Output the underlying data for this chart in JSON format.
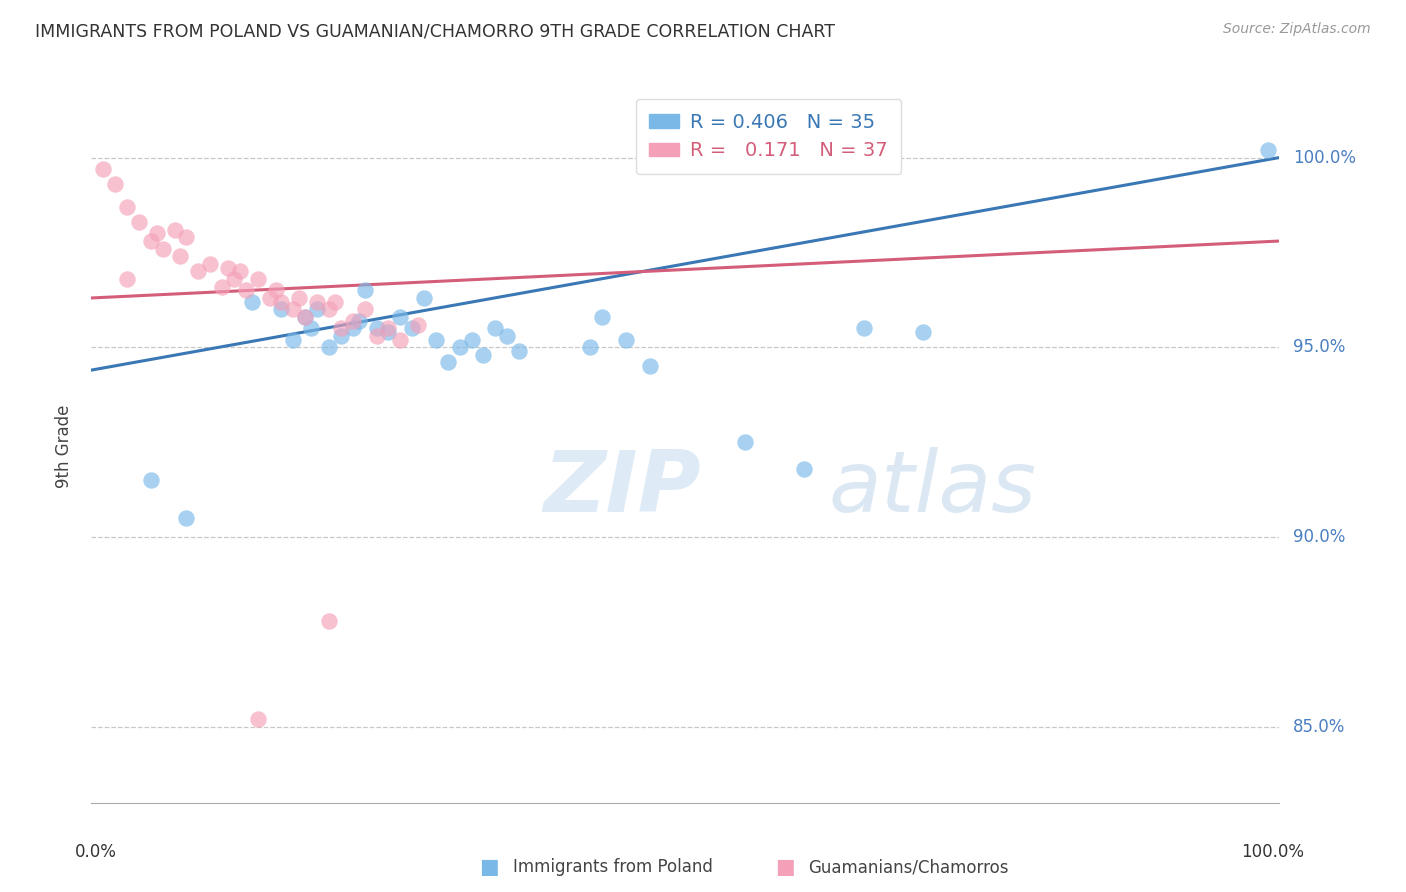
{
  "title": "IMMIGRANTS FROM POLAND VS GUAMANIAN/CHAMORRO 9TH GRADE CORRELATION CHART",
  "source": "Source: ZipAtlas.com",
  "ylabel": "9th Grade",
  "xlim": [
    0,
    100
  ],
  "ylim": [
    83.0,
    101.8
  ],
  "yticks": [
    85.0,
    90.0,
    95.0,
    100.0
  ],
  "ytick_labels": [
    "85.0%",
    "90.0%",
    "95.0%",
    "100.0%"
  ],
  "blue_color": "#7ab8e8",
  "pink_color": "#f4a0b8",
  "blue_line_color": "#3a78b5",
  "pink_line_color": "#d45e7a",
  "legend_blue_R": "0.406",
  "legend_blue_N": "35",
  "legend_pink_R": "0.171",
  "legend_pink_N": "37",
  "blue_scatter_x": [
    5.0,
    8.0,
    13.5,
    16.0,
    17.0,
    18.0,
    18.5,
    19.0,
    20.0,
    21.0,
    22.0,
    22.5,
    23.0,
    24.0,
    25.0,
    26.0,
    27.0,
    28.0,
    29.0,
    30.0,
    31.0,
    32.0,
    33.0,
    34.0,
    35.0,
    36.0,
    42.0,
    43.0,
    45.0,
    47.0,
    55.0,
    60.0,
    65.0,
    70.0,
    99.0
  ],
  "blue_scatter_y": [
    91.5,
    90.5,
    96.2,
    96.0,
    95.2,
    95.8,
    95.5,
    96.0,
    95.0,
    95.3,
    95.5,
    95.7,
    96.5,
    95.5,
    95.4,
    95.8,
    95.5,
    96.3,
    95.2,
    94.6,
    95.0,
    95.2,
    94.8,
    95.5,
    95.3,
    94.9,
    95.0,
    95.8,
    95.2,
    94.5,
    92.5,
    91.8,
    95.5,
    95.4,
    100.2
  ],
  "pink_scatter_x": [
    1.0,
    2.0,
    3.0,
    4.0,
    5.0,
    5.5,
    6.0,
    7.0,
    7.5,
    8.0,
    9.0,
    10.0,
    11.0,
    11.5,
    12.0,
    12.5,
    13.0,
    14.0,
    15.0,
    15.5,
    16.0,
    17.0,
    17.5,
    18.0,
    19.0,
    20.0,
    20.5,
    21.0,
    22.0,
    23.0,
    24.0,
    25.0,
    26.0,
    27.5,
    20.0,
    14.0,
    3.0
  ],
  "pink_scatter_y": [
    99.7,
    99.3,
    98.7,
    98.3,
    97.8,
    98.0,
    97.6,
    98.1,
    97.4,
    97.9,
    97.0,
    97.2,
    96.6,
    97.1,
    96.8,
    97.0,
    96.5,
    96.8,
    96.3,
    96.5,
    96.2,
    96.0,
    96.3,
    95.8,
    96.2,
    96.0,
    96.2,
    95.5,
    95.7,
    96.0,
    95.3,
    95.5,
    95.2,
    95.6,
    87.8,
    85.2,
    96.8
  ],
  "watermark_text": "ZIPatlas",
  "background_color": "#ffffff",
  "grid_color": "#c8c8c8",
  "blue_line_x0": 0.0,
  "blue_line_y0": 94.4,
  "blue_line_x1": 100.0,
  "blue_line_y1": 100.0,
  "pink_line_x0": 0.0,
  "pink_line_y0": 96.3,
  "pink_line_x1": 100.0,
  "pink_line_y1": 97.8
}
